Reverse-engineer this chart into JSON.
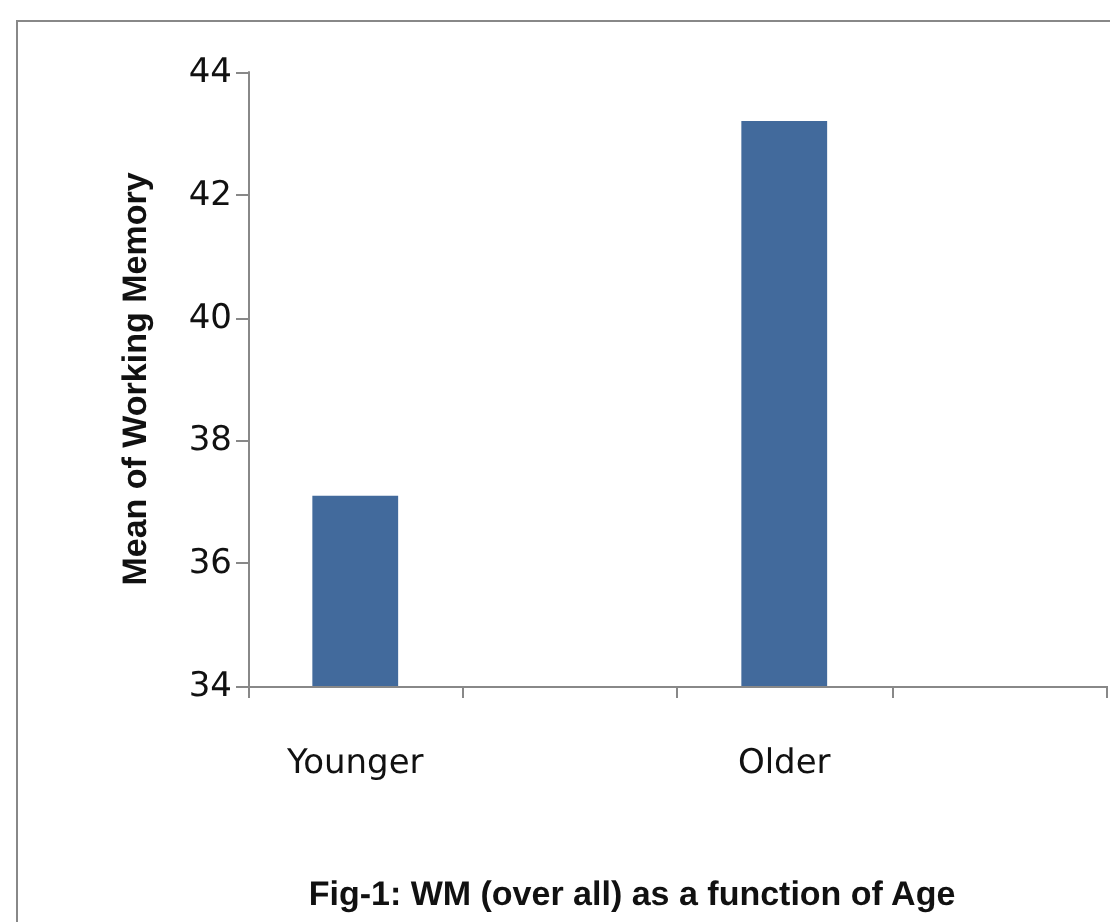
{
  "chart_data": {
    "type": "bar",
    "title": "Fig-1: WM (over all) as a function of Age",
    "ylabel": "Mean of Working Memory",
    "categories": [
      "Younger",
      null,
      "Older",
      null
    ],
    "values": [
      37.1,
      null,
      43.2,
      null
    ],
    "color": "#426a9c",
    "ylim": [
      34,
      44
    ],
    "yticks": [
      34,
      36,
      38,
      40,
      42,
      44
    ],
    "grid": false
  }
}
